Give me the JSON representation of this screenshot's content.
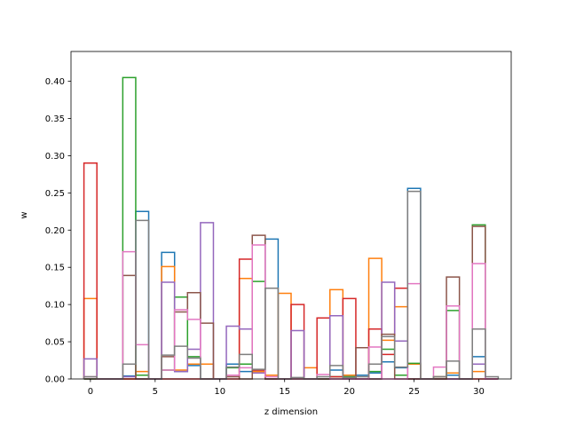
{
  "chart_data": {
    "type": "bar",
    "style": "step-histogram",
    "xlabel": "z dimension",
    "ylabel": "w",
    "xlim": [
      -1.5,
      32.5
    ],
    "ylim": [
      0,
      0.44
    ],
    "xticks": [
      0,
      5,
      10,
      15,
      20,
      25,
      30
    ],
    "yticks": [
      0.0,
      0.05,
      0.1,
      0.15,
      0.2,
      0.25,
      0.3,
      0.35,
      0.4
    ],
    "ytick_labels": [
      "0.00",
      "0.05",
      "0.10",
      "0.15",
      "0.20",
      "0.25",
      "0.30",
      "0.35",
      "0.40"
    ],
    "grid": false,
    "legend": "none",
    "bin_centers": [
      0,
      1,
      2,
      3,
      4,
      5,
      6,
      7,
      8,
      9,
      10,
      11,
      12,
      13,
      14,
      15,
      16,
      17,
      18,
      19,
      20,
      21,
      22,
      23,
      24,
      25,
      26,
      27,
      28,
      29,
      30,
      31
    ],
    "series": [
      {
        "color": "#1f77b4",
        "values": [
          0,
          0,
          0,
          0.004,
          0.225,
          0,
          0.17,
          0.01,
          0.018,
          0,
          0,
          0.02,
          0.01,
          0.012,
          0.188,
          0,
          0,
          0,
          0,
          0.012,
          0.003,
          0.005,
          0.008,
          0.023,
          0.015,
          0.256,
          0,
          0.003,
          0.005,
          0,
          0.03,
          0
        ]
      },
      {
        "color": "#ff7f0e",
        "values": [
          0.108,
          0,
          0,
          0,
          0.01,
          0,
          0.151,
          0.012,
          0.02,
          0.02,
          0,
          0.005,
          0.135,
          0.01,
          0.005,
          0.115,
          0,
          0.015,
          0,
          0.12,
          0.005,
          0,
          0.162,
          0.052,
          0.097,
          0.02,
          0,
          0.003,
          0.008,
          0,
          0.01,
          0
        ]
      },
      {
        "color": "#2ca02c",
        "values": [
          0,
          0,
          0,
          0.405,
          0.005,
          0,
          0.012,
          0.11,
          0.03,
          0,
          0,
          0.015,
          0.02,
          0.131,
          0,
          0,
          0,
          0,
          0,
          0.003,
          0.003,
          0,
          0.01,
          0.04,
          0.005,
          0.021,
          0,
          0,
          0.092,
          0,
          0.207,
          0
        ]
      },
      {
        "color": "#d62728",
        "values": [
          0.29,
          0,
          0,
          0,
          0,
          0,
          0,
          0,
          0,
          0,
          0,
          0,
          0.161,
          0.012,
          0,
          0,
          0.1,
          0,
          0.082,
          0.003,
          0.108,
          0,
          0.067,
          0.033,
          0.122,
          0,
          0,
          0,
          0,
          0,
          0,
          0
        ]
      },
      {
        "color": "#9467bd",
        "values": [
          0.027,
          0,
          0,
          0.003,
          0,
          0,
          0.13,
          0.01,
          0.04,
          0.21,
          0,
          0.071,
          0.067,
          0.008,
          0,
          0,
          0.065,
          0,
          0,
          0.085,
          0,
          0,
          0,
          0.13,
          0.051,
          0,
          0,
          0,
          0,
          0,
          0.02,
          0
        ]
      },
      {
        "color": "#8c564b",
        "values": [
          0,
          0,
          0,
          0.139,
          0,
          0,
          0.03,
          0.09,
          0.116,
          0.075,
          0,
          0.003,
          0,
          0.193,
          0,
          0,
          0,
          0,
          0,
          0,
          0,
          0.042,
          0,
          0.06,
          0,
          0,
          0,
          0,
          0.137,
          0,
          0.205,
          0
        ]
      },
      {
        "color": "#e377c2",
        "values": [
          0.003,
          0,
          0,
          0.171,
          0.046,
          0,
          0.012,
          0.093,
          0.08,
          0,
          0,
          0.005,
          0.015,
          0.18,
          0.003,
          0,
          0,
          0,
          0.006,
          0,
          0,
          0,
          0.043,
          0,
          0,
          0.128,
          0,
          0.016,
          0.098,
          0,
          0.155,
          0
        ]
      },
      {
        "color": "#7f7f7f",
        "values": [
          0.003,
          0,
          0,
          0.02,
          0.213,
          0,
          0.032,
          0.044,
          0.028,
          0,
          0,
          0.016,
          0.033,
          0.013,
          0.122,
          0,
          0.002,
          0,
          0.003,
          0.018,
          0.002,
          0.003,
          0.02,
          0.057,
          0.016,
          0.252,
          0,
          0.003,
          0.024,
          0,
          0.067,
          0.003
        ]
      }
    ]
  }
}
